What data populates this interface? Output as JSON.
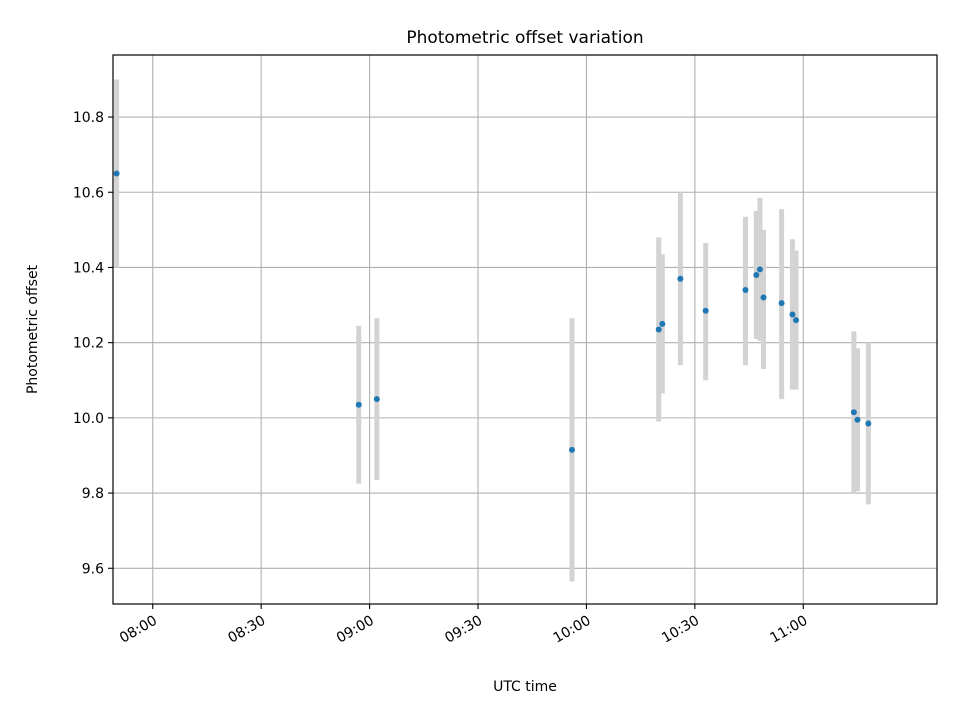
{
  "chart_data": {
    "type": "scatter",
    "title": "Photometric offset variation",
    "xlabel": "UTC time",
    "ylabel": "Photometric offset",
    "x_unit": "UTC time (HH:MM)",
    "xlim": [
      "07:49",
      "11:37"
    ],
    "ylim": [
      9.505,
      10.965
    ],
    "grid": true,
    "x_ticks": [
      "08:00",
      "08:30",
      "09:00",
      "09:30",
      "10:00",
      "10:30",
      "11:00"
    ],
    "y_ticks": [
      "9.6",
      "9.8",
      "10.0",
      "10.2",
      "10.4",
      "10.6",
      "10.8"
    ],
    "colors": {
      "marker": "#1f77b4",
      "errorbar": "#d3d3d3",
      "grid": "#b0b0b0"
    },
    "points": [
      {
        "x": "07:50",
        "y": 10.65,
        "lo": 10.4,
        "hi": 10.9
      },
      {
        "x": "08:57",
        "y": 10.035,
        "lo": 9.825,
        "hi": 10.245
      },
      {
        "x": "09:02",
        "y": 10.05,
        "lo": 9.835,
        "hi": 10.265
      },
      {
        "x": "09:56",
        "y": 9.915,
        "lo": 9.565,
        "hi": 10.265
      },
      {
        "x": "10:20",
        "y": 10.235,
        "lo": 9.99,
        "hi": 10.48
      },
      {
        "x": "10:21",
        "y": 10.25,
        "lo": 10.065,
        "hi": 10.435
      },
      {
        "x": "10:26",
        "y": 10.37,
        "lo": 10.14,
        "hi": 10.6
      },
      {
        "x": "10:33",
        "y": 10.285,
        "lo": 10.1,
        "hi": 10.465
      },
      {
        "x": "10:44",
        "y": 10.34,
        "lo": 10.14,
        "hi": 10.535
      },
      {
        "x": "10:47",
        "y": 10.38,
        "lo": 10.21,
        "hi": 10.55
      },
      {
        "x": "10:48",
        "y": 10.395,
        "lo": 10.205,
        "hi": 10.585
      },
      {
        "x": "10:49",
        "y": 10.32,
        "lo": 10.13,
        "hi": 10.5
      },
      {
        "x": "10:54",
        "y": 10.305,
        "lo": 10.05,
        "hi": 10.555
      },
      {
        "x": "10:57",
        "y": 10.275,
        "lo": 10.075,
        "hi": 10.475
      },
      {
        "x": "10:58",
        "y": 10.26,
        "lo": 10.075,
        "hi": 10.445
      },
      {
        "x": "11:14",
        "y": 10.015,
        "lo": 9.8,
        "hi": 10.23
      },
      {
        "x": "11:15",
        "y": 9.995,
        "lo": 9.805,
        "hi": 10.185
      },
      {
        "x": "11:18",
        "y": 9.985,
        "lo": 9.77,
        "hi": 10.2
      }
    ]
  }
}
